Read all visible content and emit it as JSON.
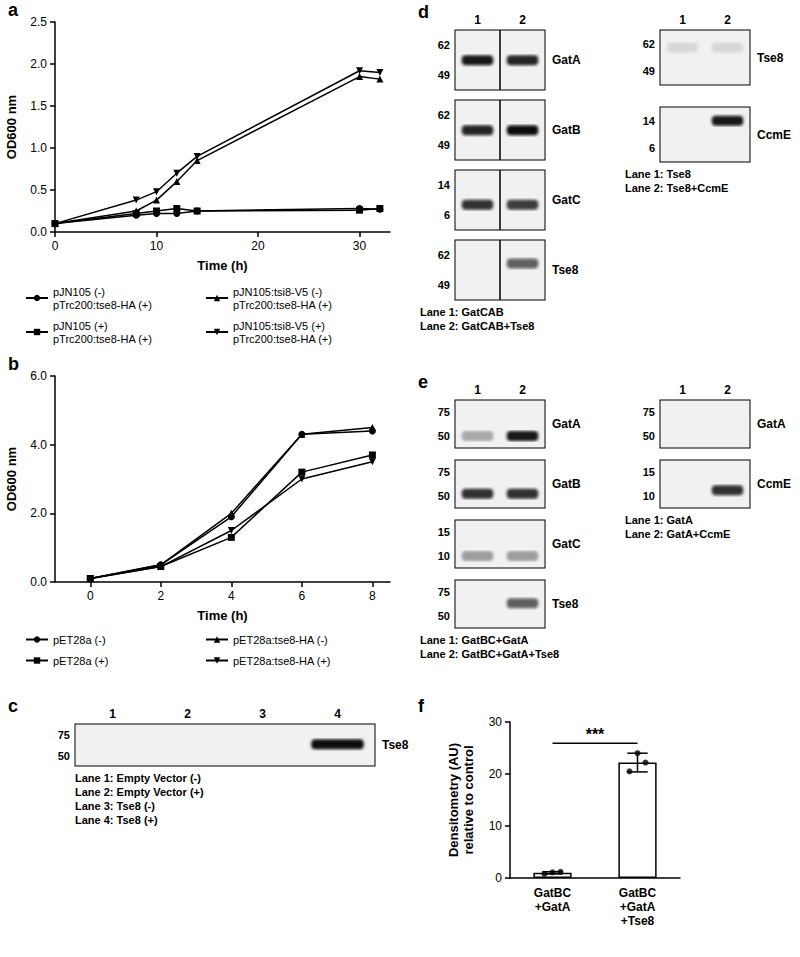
{
  "chart_data": [
    {
      "panel": "a",
      "type": "line",
      "x_label": "Time (h)",
      "y_label": "OD600 nm",
      "x": [
        0,
        8,
        10,
        12,
        14,
        30,
        32
      ],
      "xlim": [
        0,
        33
      ],
      "xticks": [
        0,
        10,
        20,
        30
      ],
      "ylim": [
        0,
        2.5
      ],
      "yticks": [
        {
          "value": 0,
          "label": "0.0"
        },
        {
          "value": 0.5,
          "label": "0.5"
        },
        {
          "value": 1,
          "label": "1.0"
        },
        {
          "value": 1.5,
          "label": "1.5"
        },
        {
          "value": 2,
          "label": "2.0"
        },
        {
          "value": 2.5,
          "label": "2.5"
        }
      ],
      "grid": false,
      "series": [
        {
          "name": "pJN105 (-)\npTrc200:tse8-HA (+)",
          "color": "#000000",
          "marker": "circle",
          "values": [
            0.1,
            0.2,
            0.22,
            0.22,
            0.25,
            0.28,
            0.27
          ]
        },
        {
          "name": "pJN105 (+)\npTrc200:tse8-HA (+)",
          "color": "#000000",
          "marker": "square",
          "values": [
            0.1,
            0.22,
            0.25,
            0.28,
            0.25,
            0.26,
            0.28
          ]
        },
        {
          "name": "pJN105:tsi8-V5 (-)\npTrc200:tse8-HA (+)",
          "color": "#000000",
          "marker": "triangle",
          "values": [
            0.1,
            0.25,
            0.38,
            0.6,
            0.85,
            1.85,
            1.82
          ]
        },
        {
          "name": "pJN105:tsi8-V5 (+)\npTrc200:tse8-HA (+)",
          "color": "#000000",
          "marker": "triangle_down",
          "values": [
            0.1,
            0.38,
            0.48,
            0.7,
            0.9,
            1.92,
            1.9
          ]
        }
      ]
    },
    {
      "panel": "b",
      "type": "line",
      "x_label": "Time (h)",
      "y_label": "OD600 nm",
      "x": [
        0,
        2,
        4,
        6,
        8
      ],
      "xlim": [
        -1,
        8.5
      ],
      "xticks": [
        0,
        2,
        4,
        6,
        8
      ],
      "ylim": [
        0,
        6
      ],
      "yticks": [
        {
          "value": 0,
          "label": "0.0"
        },
        {
          "value": 2,
          "label": "2.0"
        },
        {
          "value": 4,
          "label": "4.0"
        },
        {
          "value": 6,
          "label": "6.0"
        }
      ],
      "grid": false,
      "series": [
        {
          "name": "pET28a (-)",
          "color": "#000000",
          "marker": "circle",
          "values": [
            0.1,
            0.5,
            1.9,
            4.3,
            4.4
          ]
        },
        {
          "name": "pET28a (+)",
          "color": "#000000",
          "marker": "square",
          "values": [
            0.1,
            0.45,
            1.3,
            3.2,
            3.7
          ]
        },
        {
          "name": "pET28a:tse8-HA (-)",
          "color": "#000000",
          "marker": "triangle",
          "values": [
            0.1,
            0.5,
            2.0,
            4.3,
            4.5
          ]
        },
        {
          "name": "pET28a:tse8-HA (+)",
          "color": "#000000",
          "marker": "triangle_down",
          "values": [
            0.1,
            0.45,
            1.5,
            3.0,
            3.5
          ]
        }
      ]
    },
    {
      "panel": "f",
      "type": "bar",
      "y_label": "Densitometry (AU)\nrelative to control",
      "categories": [
        "GatBC\n+GatA",
        "GatBC\n+GatA\n+Tse8"
      ],
      "values": [
        1.0,
        22.2
      ],
      "errors": [
        0.2,
        1.8
      ],
      "points": [
        [
          0.8,
          1.1,
          1.2
        ],
        [
          20.5,
          24.0,
          22.2
        ]
      ],
      "color": "#ffffff",
      "ylim": [
        0,
        30
      ],
      "yticks": [
        0,
        10,
        20,
        30
      ],
      "grid": false,
      "annotation": "***"
    }
  ],
  "blots": [
    {
      "panel": "c",
      "groups": [
        {
          "lanes": [
            "1",
            "2",
            "3",
            "4"
          ],
          "rows": [
            {
              "label": "Tse8",
              "markers": [
                75,
                50
              ],
              "band_kda": 62,
              "bands": [
                0,
                0,
                0,
                0.95
              ]
            }
          ],
          "lane_labels": [
            "Lane 1: Empty Vector (-)",
            "Lane 2: Empty Vector (+)",
            "Lane 3: Tse8 (-)",
            "Lane 4: Tse8 (+)"
          ]
        }
      ]
    },
    {
      "panel": "d",
      "groups": [
        {
          "lanes": [
            "1",
            "2"
          ],
          "divider": true,
          "rows": [
            {
              "label": "GatA",
              "markers": [
                62,
                49
              ],
              "band_kda": 55,
              "bands": [
                0.9,
                0.85
              ]
            },
            {
              "label": "GatB",
              "markers": [
                62,
                49
              ],
              "band_kda": 55,
              "bands": [
                0.85,
                0.95
              ]
            },
            {
              "label": "GatC",
              "markers": [
                14,
                6
              ],
              "band_kda": 8,
              "bands": [
                0.8,
                0.75
              ]
            },
            {
              "label": "Tse8",
              "markers": [
                62,
                49
              ],
              "band_kda": 58,
              "bands": [
                0,
                0.6
              ]
            }
          ],
          "lane_labels": [
            "Lane 1: GatCAB",
            "Lane 2: GatCAB+Tse8"
          ]
        },
        {
          "lanes": [
            "1",
            "2"
          ],
          "rows": [
            {
              "label": "Tse8",
              "markers": [
                62,
                49
              ],
              "band_kda": 60,
              "bands": [
                0.1,
                0.1
              ]
            },
            {
              "label": "CcmE",
              "markers": [
                14,
                6
              ],
              "band_kda": 14,
              "bands": [
                0,
                0.9
              ]
            }
          ],
          "lane_labels": [
            "Lane 1: Tse8",
            "Lane 2: Tse8+CcmE"
          ]
        }
      ]
    },
    {
      "panel": "e",
      "groups": [
        {
          "lanes": [
            "1",
            "2"
          ],
          "rows": [
            {
              "label": "GatA",
              "markers": [
                75,
                50
              ],
              "band_kda": 50,
              "bands": [
                0.3,
                0.9
              ]
            },
            {
              "label": "GatB",
              "markers": [
                75,
                50
              ],
              "band_kda": 52,
              "bands": [
                0.8,
                0.8
              ]
            },
            {
              "label": "GatC",
              "markers": [
                15,
                10
              ],
              "band_kda": 10,
              "bands": [
                0.35,
                0.35
              ]
            },
            {
              "label": "Tse8",
              "markers": [
                75,
                50
              ],
              "band_kda": 62,
              "bands": [
                0,
                0.6
              ]
            }
          ],
          "lane_labels": [
            "Lane 1: GatBC+GatA",
            "Lane 2: GatBC+GatA+Tse8"
          ]
        },
        {
          "lanes": [
            "1",
            "2"
          ],
          "rows": [
            {
              "label": "GatA",
              "markers": [
                75,
                50
              ],
              "band_kda": 50,
              "bands": [
                0,
                0
              ]
            },
            {
              "label": "CcmE",
              "markers": [
                15,
                10
              ],
              "band_kda": 11,
              "bands": [
                0,
                0.8
              ]
            }
          ],
          "lane_labels": [
            "Lane 1: GatA",
            "Lane 2: GatA+CcmE"
          ]
        }
      ]
    }
  ]
}
